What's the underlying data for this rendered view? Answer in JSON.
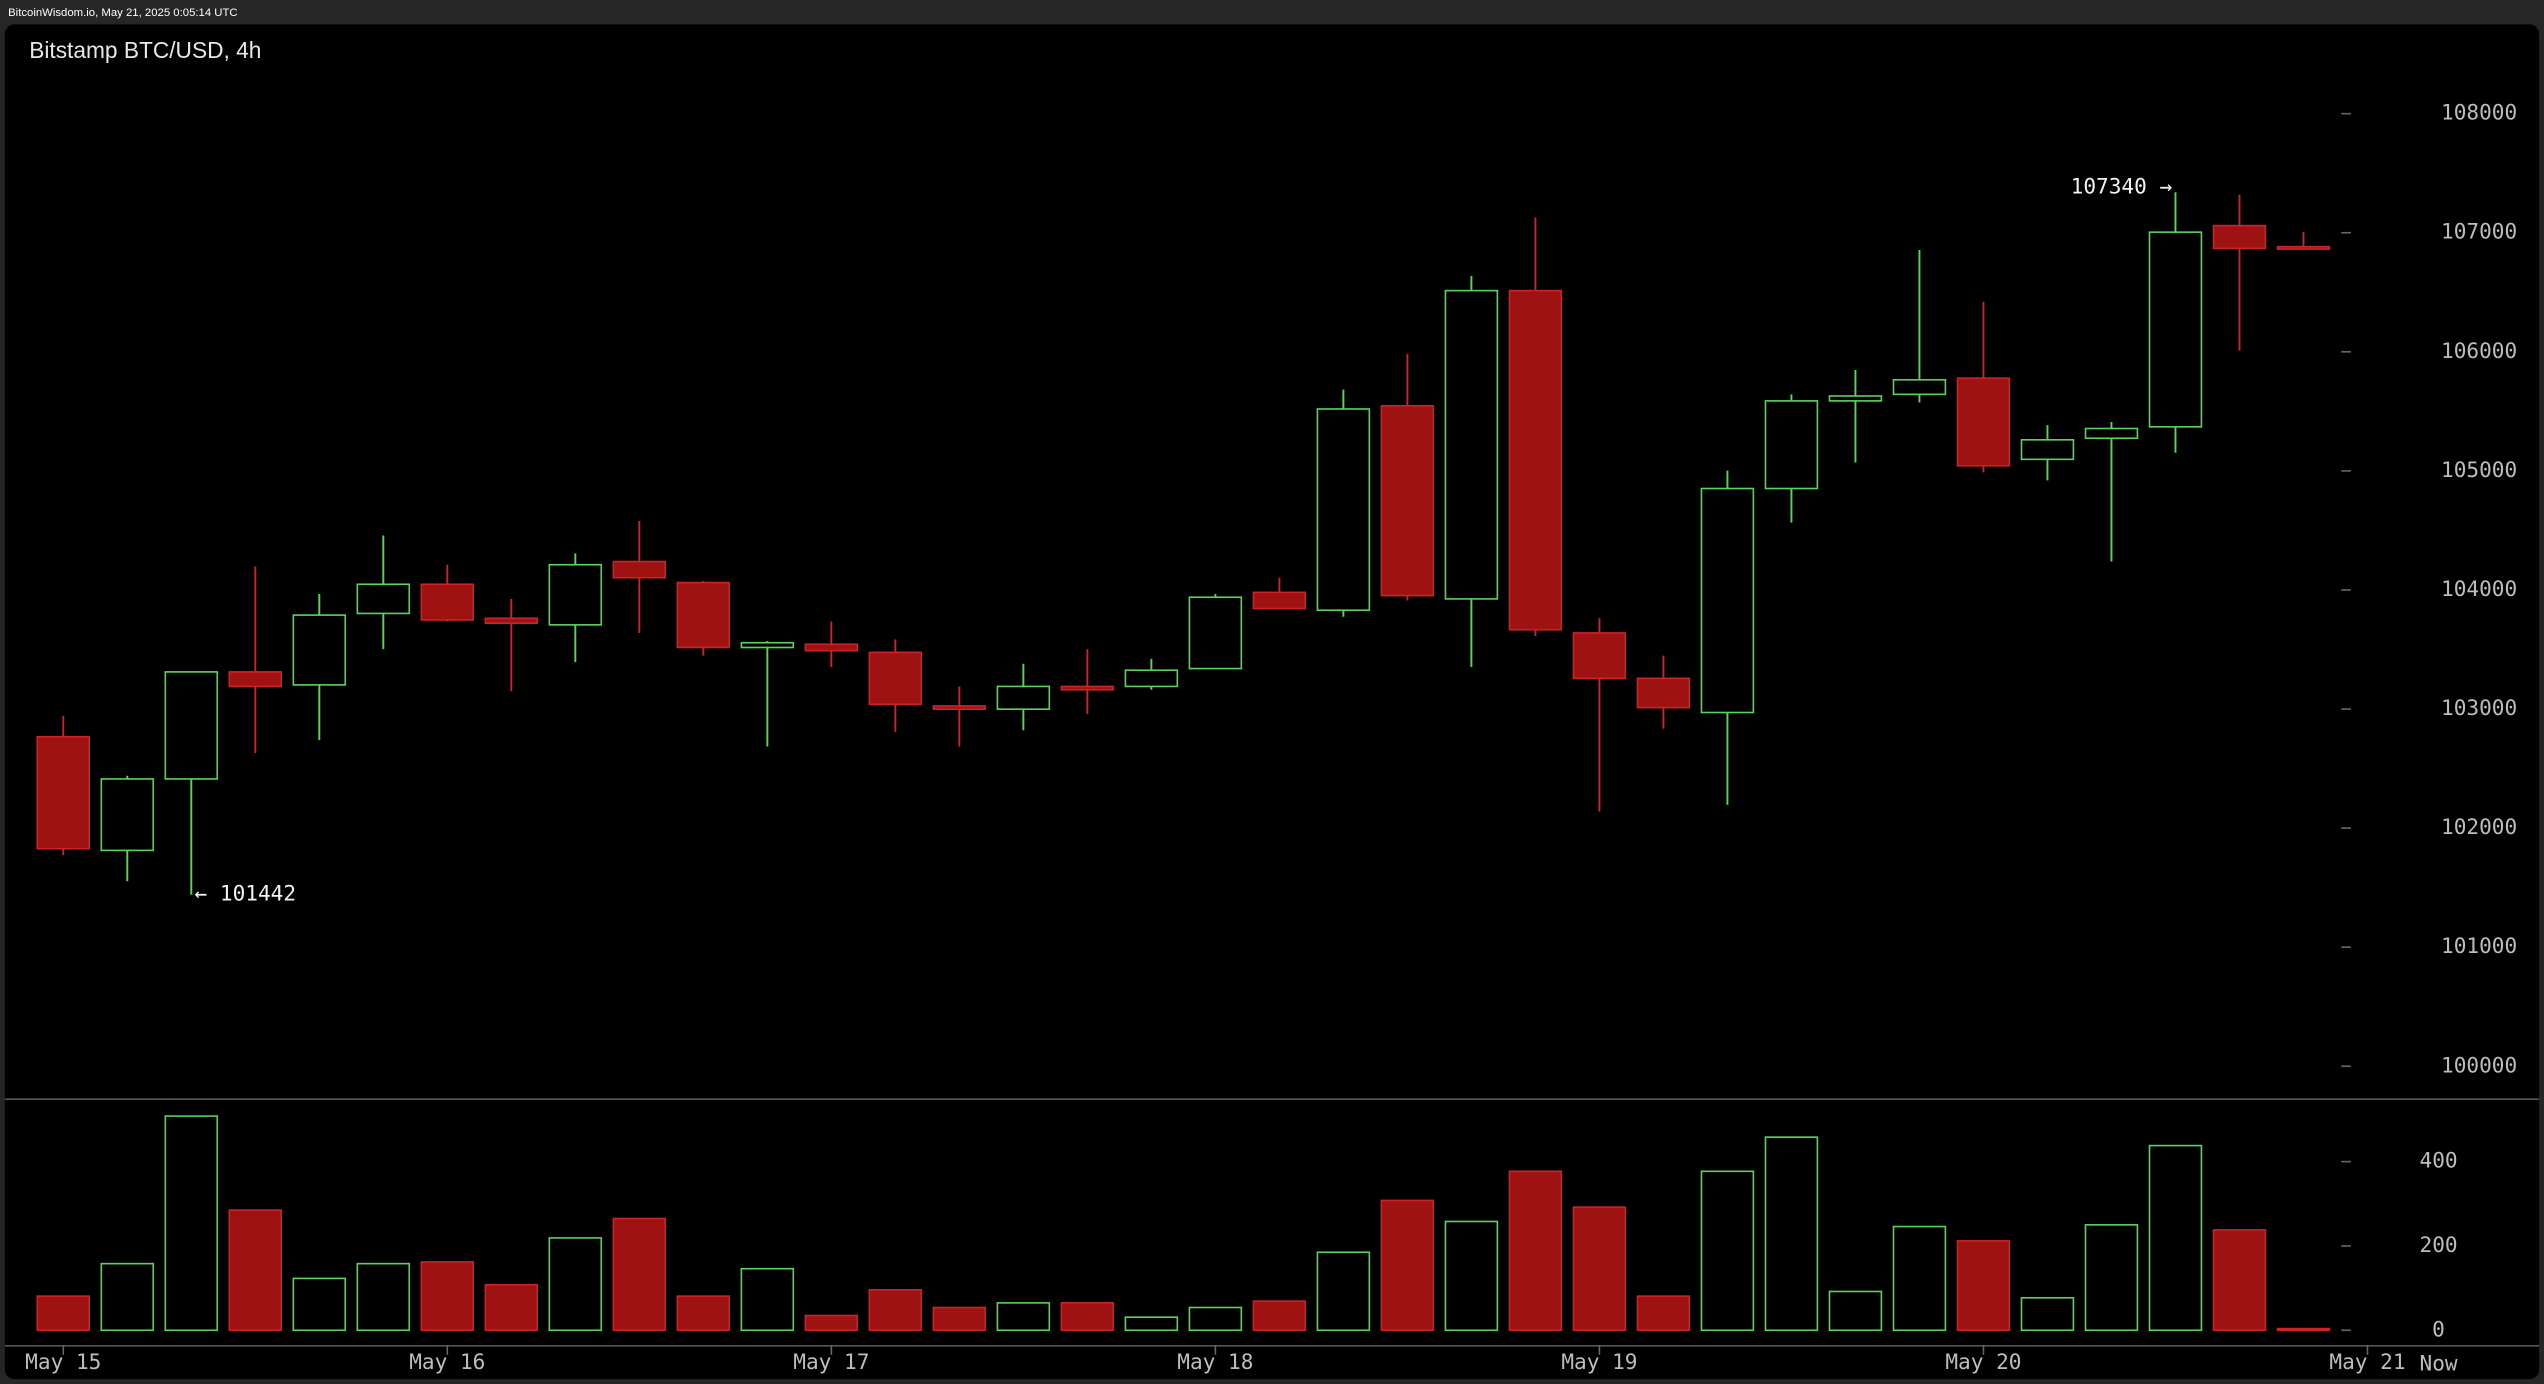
{
  "header": "BitcoinWisdom.io, May 21, 2025 0:05:14 UTC",
  "chart_data": {
    "type": "candlestick",
    "title": "Bitstamp BTC/USD, 4h",
    "open": [
      102767,
      101813,
      102413,
      103312,
      103203,
      103803,
      104048,
      103762,
      103707,
      104239,
      104062,
      103517,
      103544,
      103476,
      103026,
      102999,
      103190,
      103190,
      103340,
      103980,
      103830,
      105547,
      103925,
      106514,
      103639,
      103258,
      102971,
      104852,
      105588,
      105643,
      105779,
      105097,
      105274,
      105370,
      107060,
      106883
    ],
    "high": [
      102944,
      102440,
      103312,
      104198,
      103966,
      104457,
      104212,
      103925,
      104307,
      104580,
      104075,
      103571,
      103735,
      103585,
      103190,
      103380,
      103503,
      103421,
      103966,
      104103,
      105683,
      105983,
      106637,
      107128,
      103762,
      103449,
      105002,
      105643,
      105847,
      106855,
      106419,
      105384,
      105411,
      107340,
      107319,
      107005
    ],
    "low": [
      101772,
      101554,
      101442,
      102631,
      102740,
      103503,
      103735,
      103149,
      103394,
      103639,
      103449,
      102685,
      103353,
      102808,
      102685,
      102822,
      102958,
      103162,
      103340,
      103844,
      103775,
      103912,
      103353,
      103612,
      102140,
      102835,
      102195,
      104566,
      105070,
      105575,
      104988,
      104920,
      104239,
      105152,
      106010,
      106869
    ],
    "close": [
      101827,
      102413,
      103312,
      103190,
      103789,
      104048,
      103748,
      103721,
      104212,
      104103,
      103517,
      103557,
      103490,
      103040,
      102999,
      103190,
      103162,
      103326,
      103939,
      103844,
      105520,
      103953,
      106514,
      103666,
      103258,
      103012,
      104852,
      105588,
      105629,
      105765,
      105043,
      105261,
      105356,
      107005,
      106869,
      106869
    ],
    "volume": [
      81,
      158,
      508,
      285,
      123,
      158,
      162,
      108,
      219,
      265,
      81,
      146,
      35,
      96,
      54,
      65,
      65,
      31,
      54,
      69,
      185,
      308,
      258,
      377,
      292,
      81,
      377,
      458,
      92,
      246,
      212,
      77,
      250,
      438,
      238,
      4
    ],
    "up_color": "#5ad35a",
    "down_color": "#9e1212",
    "ylim": [
      99730,
      108750
    ],
    "yticks": [
      100000,
      101000,
      102000,
      103000,
      104000,
      105000,
      106000,
      107000,
      108000
    ],
    "volume_ylim": [
      -35,
      546
    ],
    "volume_yticks": [
      0,
      200,
      400
    ],
    "xticks": [
      {
        "value": 0,
        "label": "May 15"
      },
      {
        "value": 6,
        "label": "May 16"
      },
      {
        "value": 12,
        "label": "May 17"
      },
      {
        "value": 18,
        "label": "May 18"
      },
      {
        "value": 24,
        "label": "May 19"
      },
      {
        "value": 30,
        "label": "May 20"
      },
      {
        "value": 36,
        "label": "May 21"
      }
    ],
    "now_label": "Now",
    "annotations": [
      {
        "label": "107340 →",
        "value": 107340,
        "index": 33
      },
      {
        "label": "← 101442",
        "value": 101442,
        "index": 2
      }
    ]
  }
}
